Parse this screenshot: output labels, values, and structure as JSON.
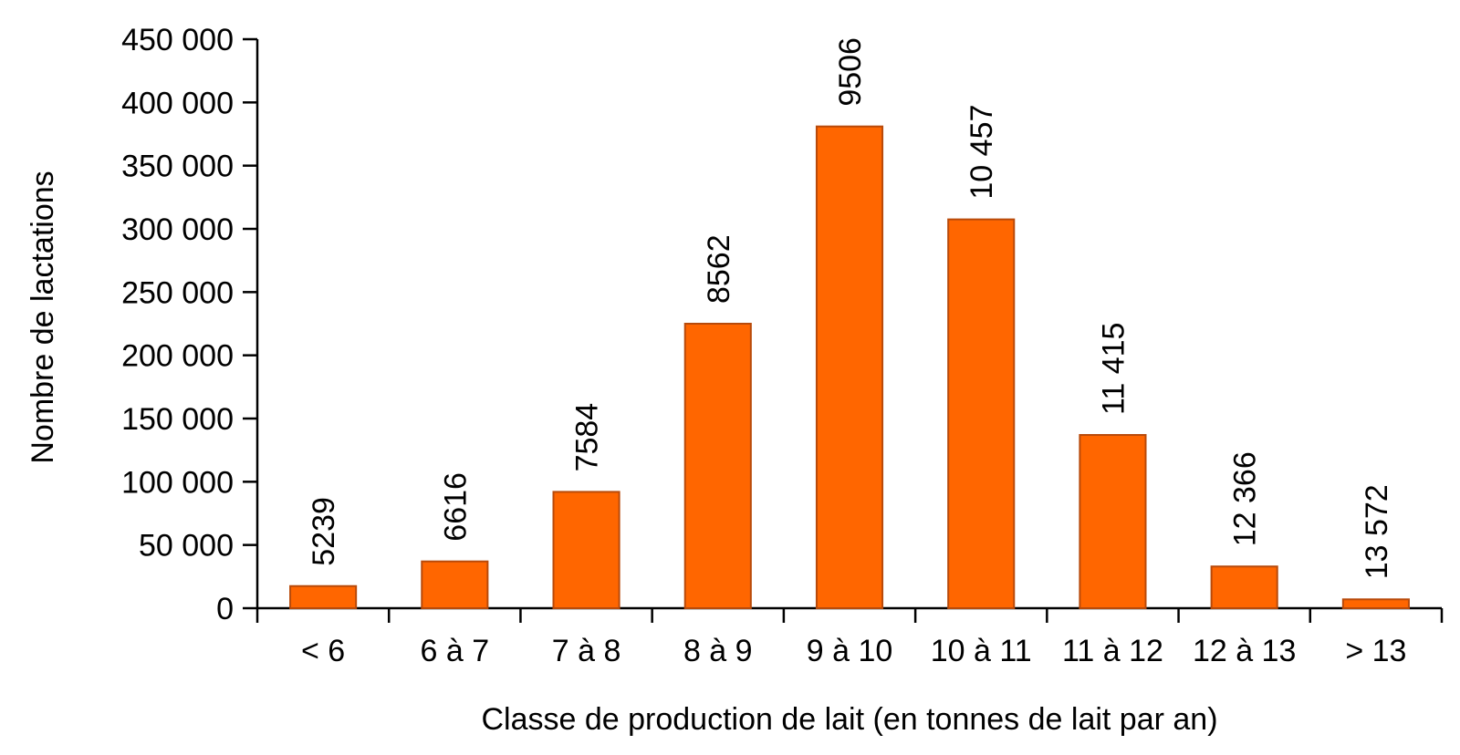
{
  "chart_data": {
    "type": "bar",
    "categories": [
      "< 6",
      "6 à 7",
      "7 à 8",
      "8 à 9",
      "9 à 10",
      "10 à 11",
      "11 à 12",
      "12 à 13",
      "> 13"
    ],
    "values": [
      17500,
      37000,
      92000,
      225000,
      381000,
      307500,
      137000,
      33000,
      7000
    ],
    "data_labels": [
      "5239",
      "6616",
      "7584",
      "8562",
      "9506",
      "10 457",
      "11 415",
      "12 366",
      "13 572"
    ],
    "xlabel": "Classe de production de lait (en tonnes de lait par an)",
    "ylabel": "Nombre de lactations",
    "ylim": [
      0,
      450000
    ],
    "yticks": [
      0,
      50000,
      100000,
      150000,
      200000,
      250000,
      300000,
      350000,
      400000,
      450000
    ],
    "ytick_labels": [
      "0",
      "50 000",
      "100 000",
      "150 000",
      "200 000",
      "250 000",
      "300 000",
      "350 000",
      "400 000",
      "450 000"
    ],
    "grid": false,
    "legend": "none",
    "colors": {
      "bar_fill": "#ff6600",
      "bar_stroke": "#b84a0a",
      "axis": "#000000"
    }
  }
}
